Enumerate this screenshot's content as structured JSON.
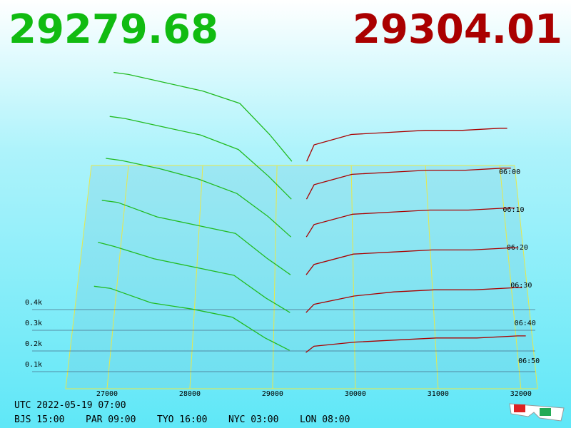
{
  "chart_data": {
    "type": "depth3d",
    "bid_price": "29279.68",
    "ask_price": "29304.01",
    "xlim": [
      26500,
      32200
    ],
    "xticks": [
      27000,
      28000,
      29000,
      30000,
      31000,
      32000
    ],
    "ylim": [
      0,
      0.5
    ],
    "yticks": [
      {
        "value": 0.1,
        "label": "0.1k"
      },
      {
        "value": 0.2,
        "label": "0.2k"
      },
      {
        "value": 0.3,
        "label": "0.3k"
      },
      {
        "value": 0.4,
        "label": "0.4k"
      }
    ],
    "zticks": [
      "06:00",
      "06:10",
      "06:20",
      "06:30",
      "06:40",
      "06:50"
    ],
    "bids": {
      "color": "#22bb22",
      "x": [
        26800,
        27000,
        27500,
        28000,
        28500,
        28900,
        29200
      ],
      "snapshots": [
        [
          0.45,
          0.44,
          0.4,
          0.36,
          0.3,
          0.15,
          0.02
        ],
        [
          0.42,
          0.41,
          0.37,
          0.33,
          0.26,
          0.13,
          0.02
        ],
        [
          0.4,
          0.39,
          0.35,
          0.3,
          0.23,
          0.12,
          0.02
        ],
        [
          0.38,
          0.37,
          0.3,
          0.26,
          0.22,
          0.1,
          0.02
        ],
        [
          0.36,
          0.34,
          0.28,
          0.24,
          0.2,
          0.09,
          0.02
        ],
        [
          0.33,
          0.32,
          0.25,
          0.22,
          0.18,
          0.08,
          0.02
        ]
      ]
    },
    "asks": {
      "color": "#aa0000",
      "x": [
        29400,
        29500,
        30000,
        30500,
        31000,
        31500,
        32000,
        32100
      ],
      "snapshots": [
        [
          0.02,
          0.1,
          0.15,
          0.16,
          0.17,
          0.17,
          0.18,
          0.18
        ],
        [
          0.02,
          0.09,
          0.14,
          0.15,
          0.16,
          0.16,
          0.17,
          0.17
        ],
        [
          0.02,
          0.08,
          0.13,
          0.14,
          0.15,
          0.15,
          0.16,
          0.16
        ],
        [
          0.02,
          0.07,
          0.12,
          0.13,
          0.14,
          0.14,
          0.15,
          0.15
        ],
        [
          0.02,
          0.06,
          0.1,
          0.12,
          0.13,
          0.13,
          0.14,
          0.14
        ],
        [
          0.01,
          0.04,
          0.06,
          0.07,
          0.08,
          0.08,
          0.09,
          0.09
        ]
      ]
    },
    "utc": "UTC 2022-05-19 07:00",
    "zones": [
      "BJS 15:00",
      "PAR 09:00",
      "TYO 16:00",
      "NYC 03:00",
      "LON 08:00"
    ]
  }
}
